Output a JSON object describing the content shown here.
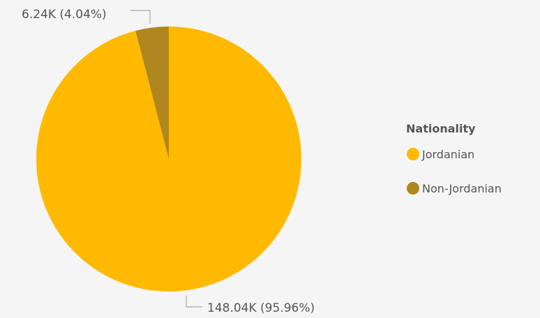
{
  "chart_data": {
    "type": "pie",
    "categories": [
      "Jordanian",
      "Non-Jordanian"
    ],
    "values": [
      148040,
      6240
    ],
    "percentages": [
      95.96,
      4.04
    ],
    "data_labels": [
      "148.04K (95.96%)",
      "6.24K (4.04%)"
    ],
    "colors": [
      "#FFB900",
      "#B0861F"
    ],
    "legend": {
      "title": "Nationality",
      "position": "right",
      "items": [
        "Jordanian",
        "Non-Jordanian"
      ]
    }
  }
}
